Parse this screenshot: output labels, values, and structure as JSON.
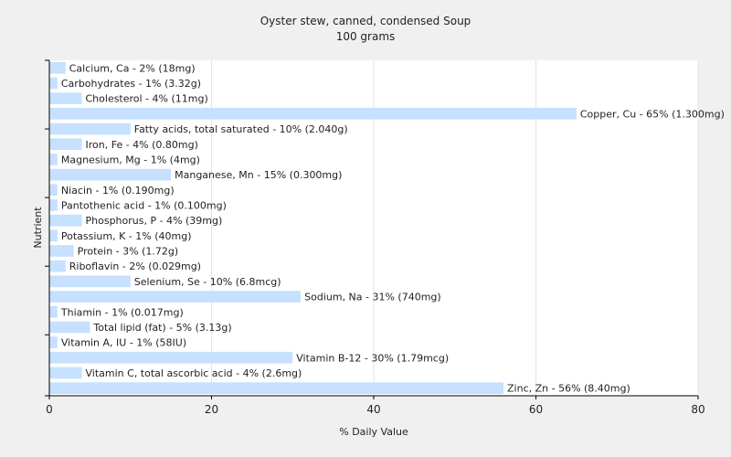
{
  "chart_data": {
    "type": "bar",
    "orientation": "horizontal",
    "title": "Oyster stew, canned, condensed Soup",
    "subtitle": "100 grams",
    "xlabel": "% Daily Value",
    "ylabel": "Nutrient",
    "xlim": [
      0,
      80
    ],
    "xticks": [
      0,
      20,
      40,
      60,
      80
    ],
    "grid": true,
    "bar_color": "#c6e0ff",
    "categories": [
      "Calcium, Ca",
      "Carbohydrates",
      "Cholesterol",
      "Copper, Cu",
      "Fatty acids, total saturated",
      "Iron, Fe",
      "Magnesium, Mg",
      "Manganese, Mn",
      "Niacin",
      "Pantothenic acid",
      "Phosphorus, P",
      "Potassium, K",
      "Protein",
      "Riboflavin",
      "Selenium, Se",
      "Sodium, Na",
      "Thiamin",
      "Total lipid (fat)",
      "Vitamin A, IU",
      "Vitamin B-12",
      "Vitamin C, total ascorbic acid",
      "Zinc, Zn"
    ],
    "values": [
      2,
      1,
      4,
      65,
      10,
      4,
      1,
      15,
      1,
      1,
      4,
      1,
      3,
      2,
      10,
      31,
      1,
      5,
      1,
      30,
      4,
      56
    ],
    "labels": [
      "Calcium, Ca - 2% (18mg)",
      "Carbohydrates - 1% (3.32g)",
      "Cholesterol - 4% (11mg)",
      "Copper, Cu - 65% (1.300mg)",
      "Fatty acids, total saturated - 10% (2.040g)",
      "Iron, Fe - 4% (0.80mg)",
      "Magnesium, Mg - 1% (4mg)",
      "Manganese, Mn - 15% (0.300mg)",
      "Niacin - 1% (0.190mg)",
      "Pantothenic acid - 1% (0.100mg)",
      "Phosphorus, P - 4% (39mg)",
      "Potassium, K - 1% (40mg)",
      "Protein - 3% (1.72g)",
      "Riboflavin - 2% (0.029mg)",
      "Selenium, Se - 10% (6.8mcg)",
      "Sodium, Na - 31% (740mg)",
      "Thiamin - 1% (0.017mg)",
      "Total lipid (fat) - 5% (3.13g)",
      "Vitamin A, IU - 1% (58IU)",
      "Vitamin B-12 - 30% (1.79mcg)",
      "Vitamin C, total ascorbic acid - 4% (2.6mg)",
      "Zinc, Zn - 56% (8.40mg)"
    ]
  }
}
